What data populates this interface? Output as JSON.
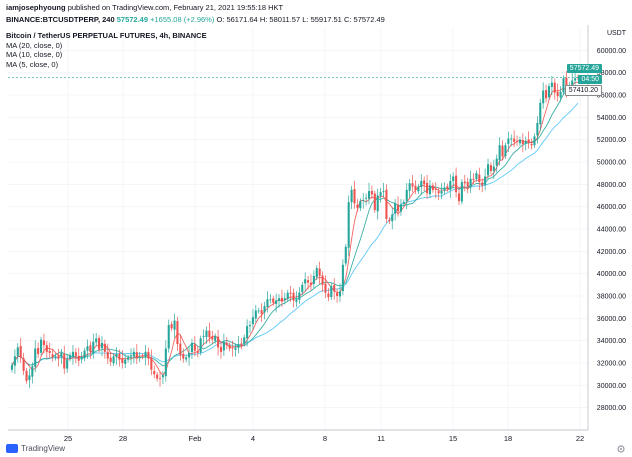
{
  "header": {
    "user": "iamjosephyoung",
    "published": "published on TradingView.com, February 21, 2021 19:55:18 HKT",
    "symbol_line": "BINANCE:BTCUSDTPERP, 240",
    "last": "57572.49",
    "change": "+1655.08 (+2.96%)",
    "o": "O: 56171.64",
    "h": "H: 58011.57",
    "l": "L: 55917.51",
    "c": "C: 57572.49"
  },
  "legend": {
    "title": "Bitcoin / TetherUS PERPETUAL FUTURES, 4h, BINANCE",
    "ma20": "MA (20, close, 0)",
    "ma10": "MA (10, close, 0)",
    "ma5": "MA (5, close, 0)"
  },
  "currency": "USDT",
  "price_labels": {
    "last": "57572.49",
    "timer": "04:50",
    "ma": "57410.20"
  },
  "footer": {
    "brand": "TradingView"
  },
  "colors": {
    "up": "#26a69a",
    "down": "#ef5350",
    "ma5": "#ef5350",
    "ma10": "#26a69a",
    "ma20": "#4fc3f7",
    "grid": "#eef0f3"
  },
  "chart_data": {
    "type": "candlestick",
    "interval": "4h",
    "ylim": [
      26000,
      62000
    ],
    "y_ticks": [
      28000,
      30000,
      32000,
      34000,
      36000,
      38000,
      40000,
      42000,
      44000,
      46000,
      48000,
      50000,
      52000,
      54000,
      56000,
      58000,
      60000
    ],
    "x_ticks": [
      "25",
      "28",
      "Feb",
      "4",
      "8",
      "11",
      "15",
      "18",
      "22"
    ],
    "series": [
      {
        "name": "MA (20, close, 0)",
        "color": "#4fc3f7"
      },
      {
        "name": "MA (10, close, 0)",
        "color": "#26a69a"
      },
      {
        "name": "MA (5, close, 0)",
        "color": "#ef5350"
      }
    ],
    "closes": [
      31800,
      32600,
      33400,
      32500,
      31300,
      30400,
      30900,
      31700,
      33300,
      32800,
      34100,
      33600,
      33000,
      32900,
      32500,
      32600,
      32400,
      32900,
      31500,
      32300,
      32700,
      33000,
      32600,
      32200,
      32500,
      33100,
      33500,
      33000,
      33900,
      34200,
      33200,
      33800,
      33000,
      32400,
      32100,
      32600,
      32800,
      32300,
      32000,
      32300,
      32500,
      32700,
      33000,
      32400,
      32500,
      32600,
      33000,
      32400,
      31400,
      31000,
      30600,
      30600,
      30900,
      33300,
      35400,
      35100,
      35800,
      33700,
      32700,
      32400,
      32500,
      32900,
      33800,
      33100,
      32900,
      34200,
      34400,
      34900,
      34300,
      34100,
      34400,
      33400,
      33000,
      33900,
      33600,
      33300,
      33300,
      33400,
      33700,
      33600,
      34300,
      35300,
      35400,
      36100,
      36700,
      36700,
      36400,
      37100,
      37700,
      37700,
      37400,
      37600,
      37800,
      37500,
      37800,
      38300,
      38200,
      37600,
      37700,
      38300,
      39000,
      39500,
      39200,
      39000,
      39800,
      40500,
      39800,
      39000,
      38300,
      37900,
      38900,
      38400,
      38000,
      38400,
      40800,
      42400,
      46400,
      47500,
      46300,
      45900,
      46500,
      46600,
      46800,
      47400,
      47100,
      45700,
      47000,
      47300,
      47400,
      44900,
      44700,
      45300,
      46300,
      45600,
      46200,
      46400,
      47500,
      48100,
      47800,
      47500,
      47800,
      48300,
      48000,
      47200,
      47900,
      47500,
      47500,
      47200,
      47400,
      47700,
      47600,
      48300,
      48700,
      47300,
      46500,
      48200,
      48100,
      47800,
      48500,
      48400,
      49000,
      48200,
      47900,
      48700,
      49800,
      49200,
      49600,
      50300,
      51500,
      50500,
      51500,
      52100,
      52100,
      51800,
      51800,
      52000,
      51600,
      51900,
      51700,
      51500,
      52300,
      53500,
      55300,
      56400,
      55700,
      56800,
      57100,
      56200,
      55900,
      56300,
      57500,
      56500,
      56800,
      57300,
      57500,
      57572
    ]
  }
}
